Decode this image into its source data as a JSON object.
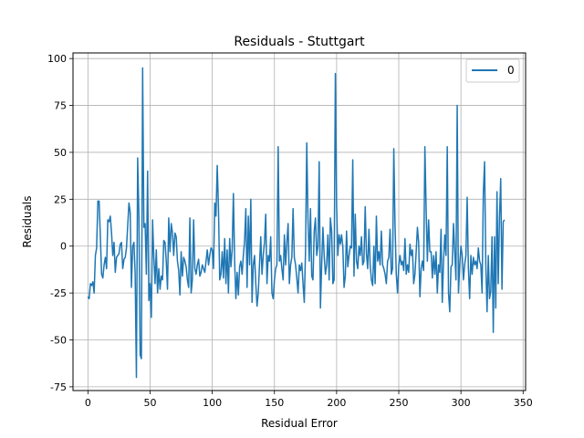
{
  "chart_data": {
    "type": "line",
    "title": "Residuals - Stuttgart",
    "xlabel": "Residual Error",
    "ylabel": "Residuals",
    "xlim": [
      -12,
      352
    ],
    "ylim": [
      -77,
      103
    ],
    "xticks": [
      0,
      50,
      100,
      150,
      200,
      250,
      300,
      350
    ],
    "yticks": [
      -75,
      -50,
      -25,
      0,
      25,
      50,
      75,
      100
    ],
    "grid": true,
    "legend_position": "top-right",
    "series": [
      {
        "name": "0",
        "color": "#1f77b4",
        "points": [
          [
            0,
            -27
          ],
          [
            1,
            -28
          ],
          [
            2,
            -20
          ],
          [
            3,
            -21
          ],
          [
            4,
            -19
          ],
          [
            5,
            -25
          ],
          [
            6,
            -5
          ],
          [
            7,
            -1
          ],
          [
            8,
            24
          ],
          [
            9,
            24
          ],
          [
            10,
            5
          ],
          [
            11,
            -15
          ],
          [
            12,
            -17
          ],
          [
            13,
            -10
          ],
          [
            14,
            -6
          ],
          [
            15,
            -12
          ],
          [
            16,
            14
          ],
          [
            17,
            13
          ],
          [
            18,
            16
          ],
          [
            19,
            7
          ],
          [
            20,
            -5
          ],
          [
            21,
            2
          ],
          [
            22,
            -14
          ],
          [
            23,
            -6
          ],
          [
            24,
            -5
          ],
          [
            25,
            -4
          ],
          [
            26,
            1
          ],
          [
            27,
            2
          ],
          [
            28,
            -12
          ],
          [
            29,
            -7
          ],
          [
            30,
            -6
          ],
          [
            31,
            -1
          ],
          [
            32,
            11
          ],
          [
            33,
            23
          ],
          [
            34,
            18
          ],
          [
            35,
            -22
          ],
          [
            36,
            0
          ],
          [
            37,
            2
          ],
          [
            38,
            -15
          ],
          [
            39,
            -70
          ],
          [
            40,
            47
          ],
          [
            41,
            16
          ],
          [
            42,
            -58
          ],
          [
            43,
            -60
          ],
          [
            44,
            95
          ],
          [
            45,
            10
          ],
          [
            46,
            12
          ],
          [
            47,
            -15
          ],
          [
            48,
            40
          ],
          [
            49,
            -29
          ],
          [
            50,
            -20
          ],
          [
            51,
            -38
          ],
          [
            52,
            14
          ],
          [
            53,
            -6
          ],
          [
            54,
            -20
          ],
          [
            55,
            -2
          ],
          [
            56,
            -25
          ],
          [
            57,
            -12
          ],
          [
            58,
            -23
          ],
          [
            59,
            -16
          ],
          [
            60,
            -18
          ],
          [
            61,
            3
          ],
          [
            62,
            2
          ],
          [
            63,
            -8
          ],
          [
            64,
            -23
          ],
          [
            65,
            15
          ],
          [
            66,
            -3
          ],
          [
            67,
            12
          ],
          [
            68,
            7
          ],
          [
            69,
            -5
          ],
          [
            70,
            7
          ],
          [
            71,
            5
          ],
          [
            72,
            -8
          ],
          [
            73,
            -13
          ],
          [
            74,
            -26
          ],
          [
            75,
            -3
          ],
          [
            76,
            -16
          ],
          [
            77,
            -6
          ],
          [
            78,
            -8
          ],
          [
            79,
            -11
          ],
          [
            80,
            -18
          ],
          [
            81,
            -22
          ],
          [
            82,
            15
          ],
          [
            83,
            -25
          ],
          [
            84,
            -18
          ],
          [
            85,
            14
          ],
          [
            86,
            -12
          ],
          [
            87,
            -15
          ],
          [
            88,
            -10
          ],
          [
            89,
            -7
          ],
          [
            90,
            -16
          ],
          [
            91,
            -14
          ],
          [
            92,
            -10
          ],
          [
            93,
            -12
          ],
          [
            94,
            -14
          ],
          [
            95,
            -8
          ],
          [
            96,
            -2
          ],
          [
            97,
            -10
          ],
          [
            98,
            -5
          ],
          [
            99,
            -1
          ],
          [
            100,
            -2
          ],
          [
            101,
            -12
          ],
          [
            102,
            23
          ],
          [
            103,
            16
          ],
          [
            104,
            43
          ],
          [
            105,
            20
          ],
          [
            106,
            -18
          ],
          [
            107,
            -15
          ],
          [
            108,
            -3
          ],
          [
            109,
            -17
          ],
          [
            110,
            4
          ],
          [
            111,
            -20
          ],
          [
            112,
            -2
          ],
          [
            113,
            -25
          ],
          [
            114,
            4
          ],
          [
            115,
            -11
          ],
          [
            116,
            -2
          ],
          [
            117,
            28
          ],
          [
            118,
            -8
          ],
          [
            119,
            -28
          ],
          [
            120,
            -14
          ],
          [
            121,
            -26
          ],
          [
            122,
            -11
          ],
          [
            123,
            -8
          ],
          [
            124,
            -15
          ],
          [
            125,
            -5
          ],
          [
            126,
            3
          ],
          [
            127,
            20
          ],
          [
            128,
            -22
          ],
          [
            129,
            16
          ],
          [
            130,
            -10
          ],
          [
            131,
            25
          ],
          [
            132,
            -30
          ],
          [
            133,
            -10
          ],
          [
            134,
            -5
          ],
          [
            135,
            -20
          ],
          [
            136,
            -32
          ],
          [
            137,
            -25
          ],
          [
            138,
            -10
          ],
          [
            139,
            5
          ],
          [
            140,
            -15
          ],
          [
            141,
            -5
          ],
          [
            142,
            2
          ],
          [
            143,
            17
          ],
          [
            144,
            -20
          ],
          [
            145,
            -5
          ],
          [
            146,
            -8
          ],
          [
            147,
            5
          ],
          [
            148,
            -25
          ],
          [
            149,
            -28
          ],
          [
            150,
            -18
          ],
          [
            151,
            -12
          ],
          [
            152,
            -10
          ],
          [
            153,
            53
          ],
          [
            154,
            -8
          ],
          [
            155,
            -5
          ],
          [
            156,
            -12
          ],
          [
            157,
            -18
          ],
          [
            158,
            6
          ],
          [
            159,
            -10
          ],
          [
            160,
            2
          ],
          [
            161,
            12
          ],
          [
            162,
            -20
          ],
          [
            163,
            -10
          ],
          [
            164,
            -6
          ],
          [
            165,
            20
          ],
          [
            166,
            -6
          ],
          [
            167,
            -10
          ],
          [
            168,
            -17
          ],
          [
            169,
            -25
          ],
          [
            170,
            -10
          ],
          [
            171,
            -13
          ],
          [
            172,
            -9
          ],
          [
            173,
            -20
          ],
          [
            174,
            -30
          ],
          [
            175,
            -3
          ],
          [
            176,
            55
          ],
          [
            177,
            14
          ],
          [
            178,
            -8
          ],
          [
            179,
            20
          ],
          [
            180,
            -16
          ],
          [
            181,
            -18
          ],
          [
            182,
            8
          ],
          [
            183,
            15
          ],
          [
            184,
            -5
          ],
          [
            185,
            0
          ],
          [
            186,
            45
          ],
          [
            187,
            -33
          ],
          [
            188,
            -10
          ],
          [
            189,
            10
          ],
          [
            190,
            -5
          ],
          [
            191,
            -15
          ],
          [
            192,
            -10
          ],
          [
            193,
            6
          ],
          [
            194,
            -18
          ],
          [
            195,
            15
          ],
          [
            196,
            8
          ],
          [
            197,
            -20
          ],
          [
            198,
            -18
          ],
          [
            199,
            92
          ],
          [
            200,
            22
          ],
          [
            201,
            -5
          ],
          [
            202,
            6
          ],
          [
            203,
            1
          ],
          [
            204,
            6
          ],
          [
            205,
            0
          ],
          [
            206,
            -22
          ],
          [
            207,
            -16
          ],
          [
            208,
            8
          ],
          [
            209,
            -11
          ],
          [
            210,
            -5
          ],
          [
            211,
            0
          ],
          [
            212,
            -1
          ],
          [
            213,
            46
          ],
          [
            214,
            -16
          ],
          [
            215,
            17
          ],
          [
            216,
            -8
          ],
          [
            217,
            -12
          ],
          [
            218,
            0
          ],
          [
            219,
            -5
          ],
          [
            220,
            5
          ],
          [
            221,
            -10
          ],
          [
            222,
            -8
          ],
          [
            223,
            21
          ],
          [
            224,
            -4
          ],
          [
            225,
            -12
          ],
          [
            226,
            9
          ],
          [
            227,
            -10
          ],
          [
            228,
            -18
          ],
          [
            229,
            -21
          ],
          [
            230,
            0
          ],
          [
            231,
            -20
          ],
          [
            232,
            16
          ],
          [
            233,
            -8
          ],
          [
            234,
            -3
          ],
          [
            235,
            -10
          ],
          [
            236,
            8
          ],
          [
            237,
            -10
          ],
          [
            238,
            -12
          ],
          [
            239,
            -15
          ],
          [
            240,
            -20
          ],
          [
            241,
            -8
          ],
          [
            242,
            -6
          ],
          [
            243,
            9
          ],
          [
            244,
            -15
          ],
          [
            245,
            -12
          ],
          [
            246,
            52
          ],
          [
            247,
            11
          ],
          [
            248,
            -15
          ],
          [
            249,
            -25
          ],
          [
            250,
            -10
          ],
          [
            251,
            -5
          ],
          [
            252,
            -10
          ],
          [
            253,
            -8
          ],
          [
            254,
            -13
          ],
          [
            255,
            4
          ],
          [
            256,
            -15
          ],
          [
            257,
            -10
          ],
          [
            258,
            -14
          ],
          [
            259,
            1
          ],
          [
            260,
            -5
          ],
          [
            261,
            -2
          ],
          [
            262,
            -20
          ],
          [
            263,
            -15
          ],
          [
            264,
            -3
          ],
          [
            265,
            10
          ],
          [
            266,
            2
          ],
          [
            267,
            -27
          ],
          [
            268,
            -12
          ],
          [
            269,
            -8
          ],
          [
            270,
            -13
          ],
          [
            271,
            53
          ],
          [
            272,
            20
          ],
          [
            273,
            -8
          ],
          [
            274,
            14
          ],
          [
            275,
            -3
          ],
          [
            276,
            -3
          ],
          [
            277,
            -17
          ],
          [
            278,
            -5
          ],
          [
            279,
            -15
          ],
          [
            280,
            -3
          ],
          [
            281,
            -25
          ],
          [
            282,
            -10
          ],
          [
            283,
            -14
          ],
          [
            284,
            9
          ],
          [
            285,
            -30
          ],
          [
            286,
            -8
          ],
          [
            287,
            6
          ],
          [
            288,
            -5
          ],
          [
            289,
            53
          ],
          [
            290,
            -25
          ],
          [
            291,
            -35
          ],
          [
            292,
            -11
          ],
          [
            293,
            -10
          ],
          [
            294,
            12
          ],
          [
            295,
            -3
          ],
          [
            296,
            -18
          ],
          [
            297,
            75
          ],
          [
            298,
            -25
          ],
          [
            299,
            -10
          ],
          [
            300,
            0
          ],
          [
            301,
            -5
          ],
          [
            302,
            -18
          ],
          [
            303,
            -10
          ],
          [
            304,
            -5
          ],
          [
            305,
            26
          ],
          [
            306,
            -12
          ],
          [
            307,
            -28
          ],
          [
            308,
            -5
          ],
          [
            309,
            -15
          ],
          [
            310,
            -6
          ],
          [
            311,
            -10
          ],
          [
            312,
            -8
          ],
          [
            313,
            -12
          ],
          [
            314,
            -1
          ],
          [
            315,
            -8
          ],
          [
            316,
            -10
          ],
          [
            317,
            -25
          ],
          [
            318,
            28
          ],
          [
            319,
            45
          ],
          [
            320,
            -10
          ],
          [
            321,
            -35
          ],
          [
            322,
            -5
          ],
          [
            323,
            -28
          ],
          [
            324,
            -24
          ],
          [
            325,
            5
          ],
          [
            326,
            -46
          ],
          [
            327,
            5
          ],
          [
            328,
            -33
          ],
          [
            329,
            29
          ],
          [
            330,
            -20
          ],
          [
            331,
            15
          ],
          [
            332,
            36
          ],
          [
            333,
            -23
          ],
          [
            334,
            13
          ],
          [
            335,
            14
          ]
        ]
      }
    ]
  }
}
